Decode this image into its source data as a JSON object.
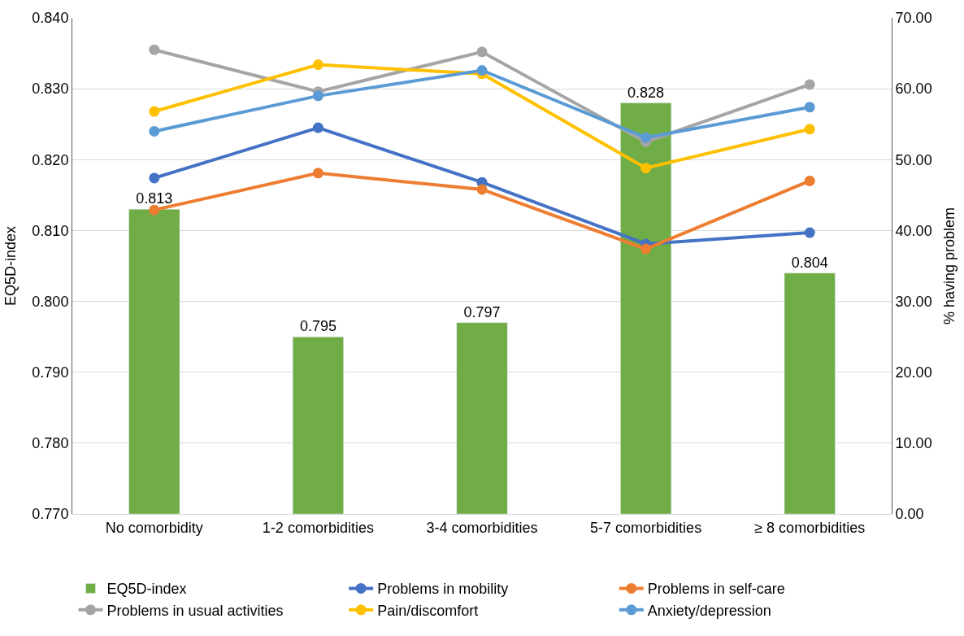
{
  "chart_data": {
    "type": "bar",
    "ylabel": "EQ5D-index",
    "y2label": "% having problem",
    "categories": [
      "No comorbidity",
      "1-2 comorbidities",
      "3-4 comorbidities",
      "5-7 comorbidities",
      "≥ 8 comorbidities"
    ],
    "series": [
      {
        "name": "EQ5D-index",
        "color": "#70ad47",
        "values": [
          0.813,
          0.795,
          0.797,
          0.828,
          0.804
        ]
      },
      {
        "name": "Problems in mobility",
        "type": "line",
        "axis": "y2",
        "color": "#4472c4",
        "values": [
          47.4,
          54.5,
          46.8,
          38.1,
          39.7
        ]
      },
      {
        "name": "Problems in self-care",
        "type": "line",
        "axis": "y2",
        "color": "#ed7d31",
        "values": [
          42.9,
          48.1,
          45.8,
          37.4,
          47.0
        ]
      },
      {
        "name": "Problems in usual activities",
        "type": "line",
        "axis": "y2",
        "color": "#a5a5a5",
        "values": [
          65.5,
          59.6,
          65.2,
          52.5,
          60.6
        ]
      },
      {
        "name": "Pain/discomfort",
        "type": "line",
        "axis": "y2",
        "color": "#ffc000",
        "values": [
          56.8,
          63.4,
          62.1,
          48.8,
          54.3
        ]
      },
      {
        "name": "Anxiety/depression",
        "type": "line",
        "axis": "y2",
        "color": "#5b9bd5",
        "values": [
          54.0,
          59.0,
          62.6,
          53.1,
          57.4
        ]
      }
    ],
    "value_labels": [
      "0.813",
      "0.795",
      "0.797",
      "0.828",
      "0.804"
    ],
    "ylim": [
      0.77,
      0.84
    ],
    "yticks": [
      {
        "value": 0.77,
        "label": "0.770"
      },
      {
        "value": 0.78,
        "label": "0.780"
      },
      {
        "value": 0.79,
        "label": "0.790"
      },
      {
        "value": 0.8,
        "label": "0.800"
      },
      {
        "value": 0.81,
        "label": "0.810"
      },
      {
        "value": 0.82,
        "label": "0.820"
      },
      {
        "value": 0.83,
        "label": "0.830"
      },
      {
        "value": 0.84,
        "label": "0.840"
      }
    ],
    "y2lim": [
      0,
      70
    ],
    "y2ticks": [
      {
        "value": 0,
        "label": "0.00"
      },
      {
        "value": 10,
        "label": "10.00"
      },
      {
        "value": 20,
        "label": "20.00"
      },
      {
        "value": 30,
        "label": "30.00"
      },
      {
        "value": 40,
        "label": "40.00"
      },
      {
        "value": 50,
        "label": "50.00"
      },
      {
        "value": 60,
        "label": "60.00"
      },
      {
        "value": 70,
        "label": "70.00"
      }
    ],
    "grid": "y",
    "legend": "bottom",
    "marker": "circle",
    "line_style": "solid"
  }
}
